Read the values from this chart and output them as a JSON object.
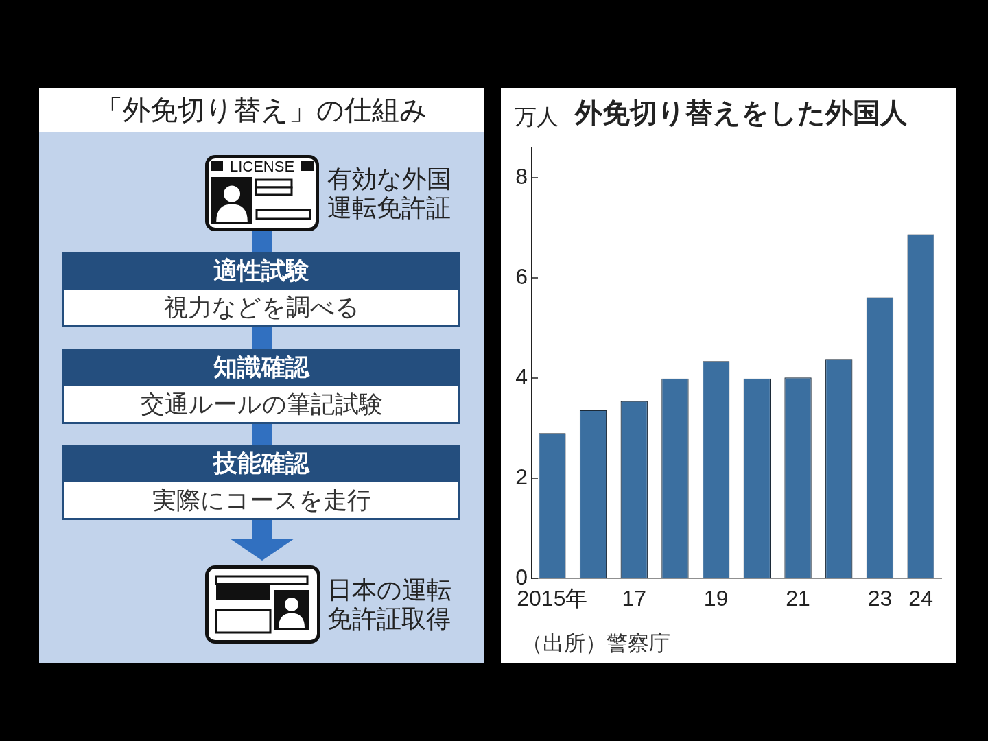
{
  "chart_data": [
    {
      "type": "other",
      "title": "「外免切り替え」の仕組み",
      "annotations": [
        "LICENSE",
        "有効な外国運転免許証",
        "適性試験",
        "視力などを調べる",
        "知識確認",
        "交通ルールの筆記試験",
        "技能確認",
        "実際にコースを走行",
        "日本の運転免許証取得"
      ]
    },
    {
      "type": "bar",
      "title": "外免切り替えをした外国人",
      "ylabel": "万人",
      "categories": [
        "2015年",
        null,
        "17",
        null,
        "19",
        null,
        "21",
        null,
        "23",
        "24"
      ],
      "values": [
        2.9,
        3.36,
        3.54,
        3.99,
        4.34,
        3.99,
        4.01,
        4.38,
        5.61,
        6.87
      ],
      "color": "#3b6fa0",
      "ylim": [
        0,
        8.6
      ],
      "yticks": [
        0,
        2,
        4,
        6,
        8
      ],
      "annotations": [
        "（出所）警察庁"
      ]
    }
  ]
}
